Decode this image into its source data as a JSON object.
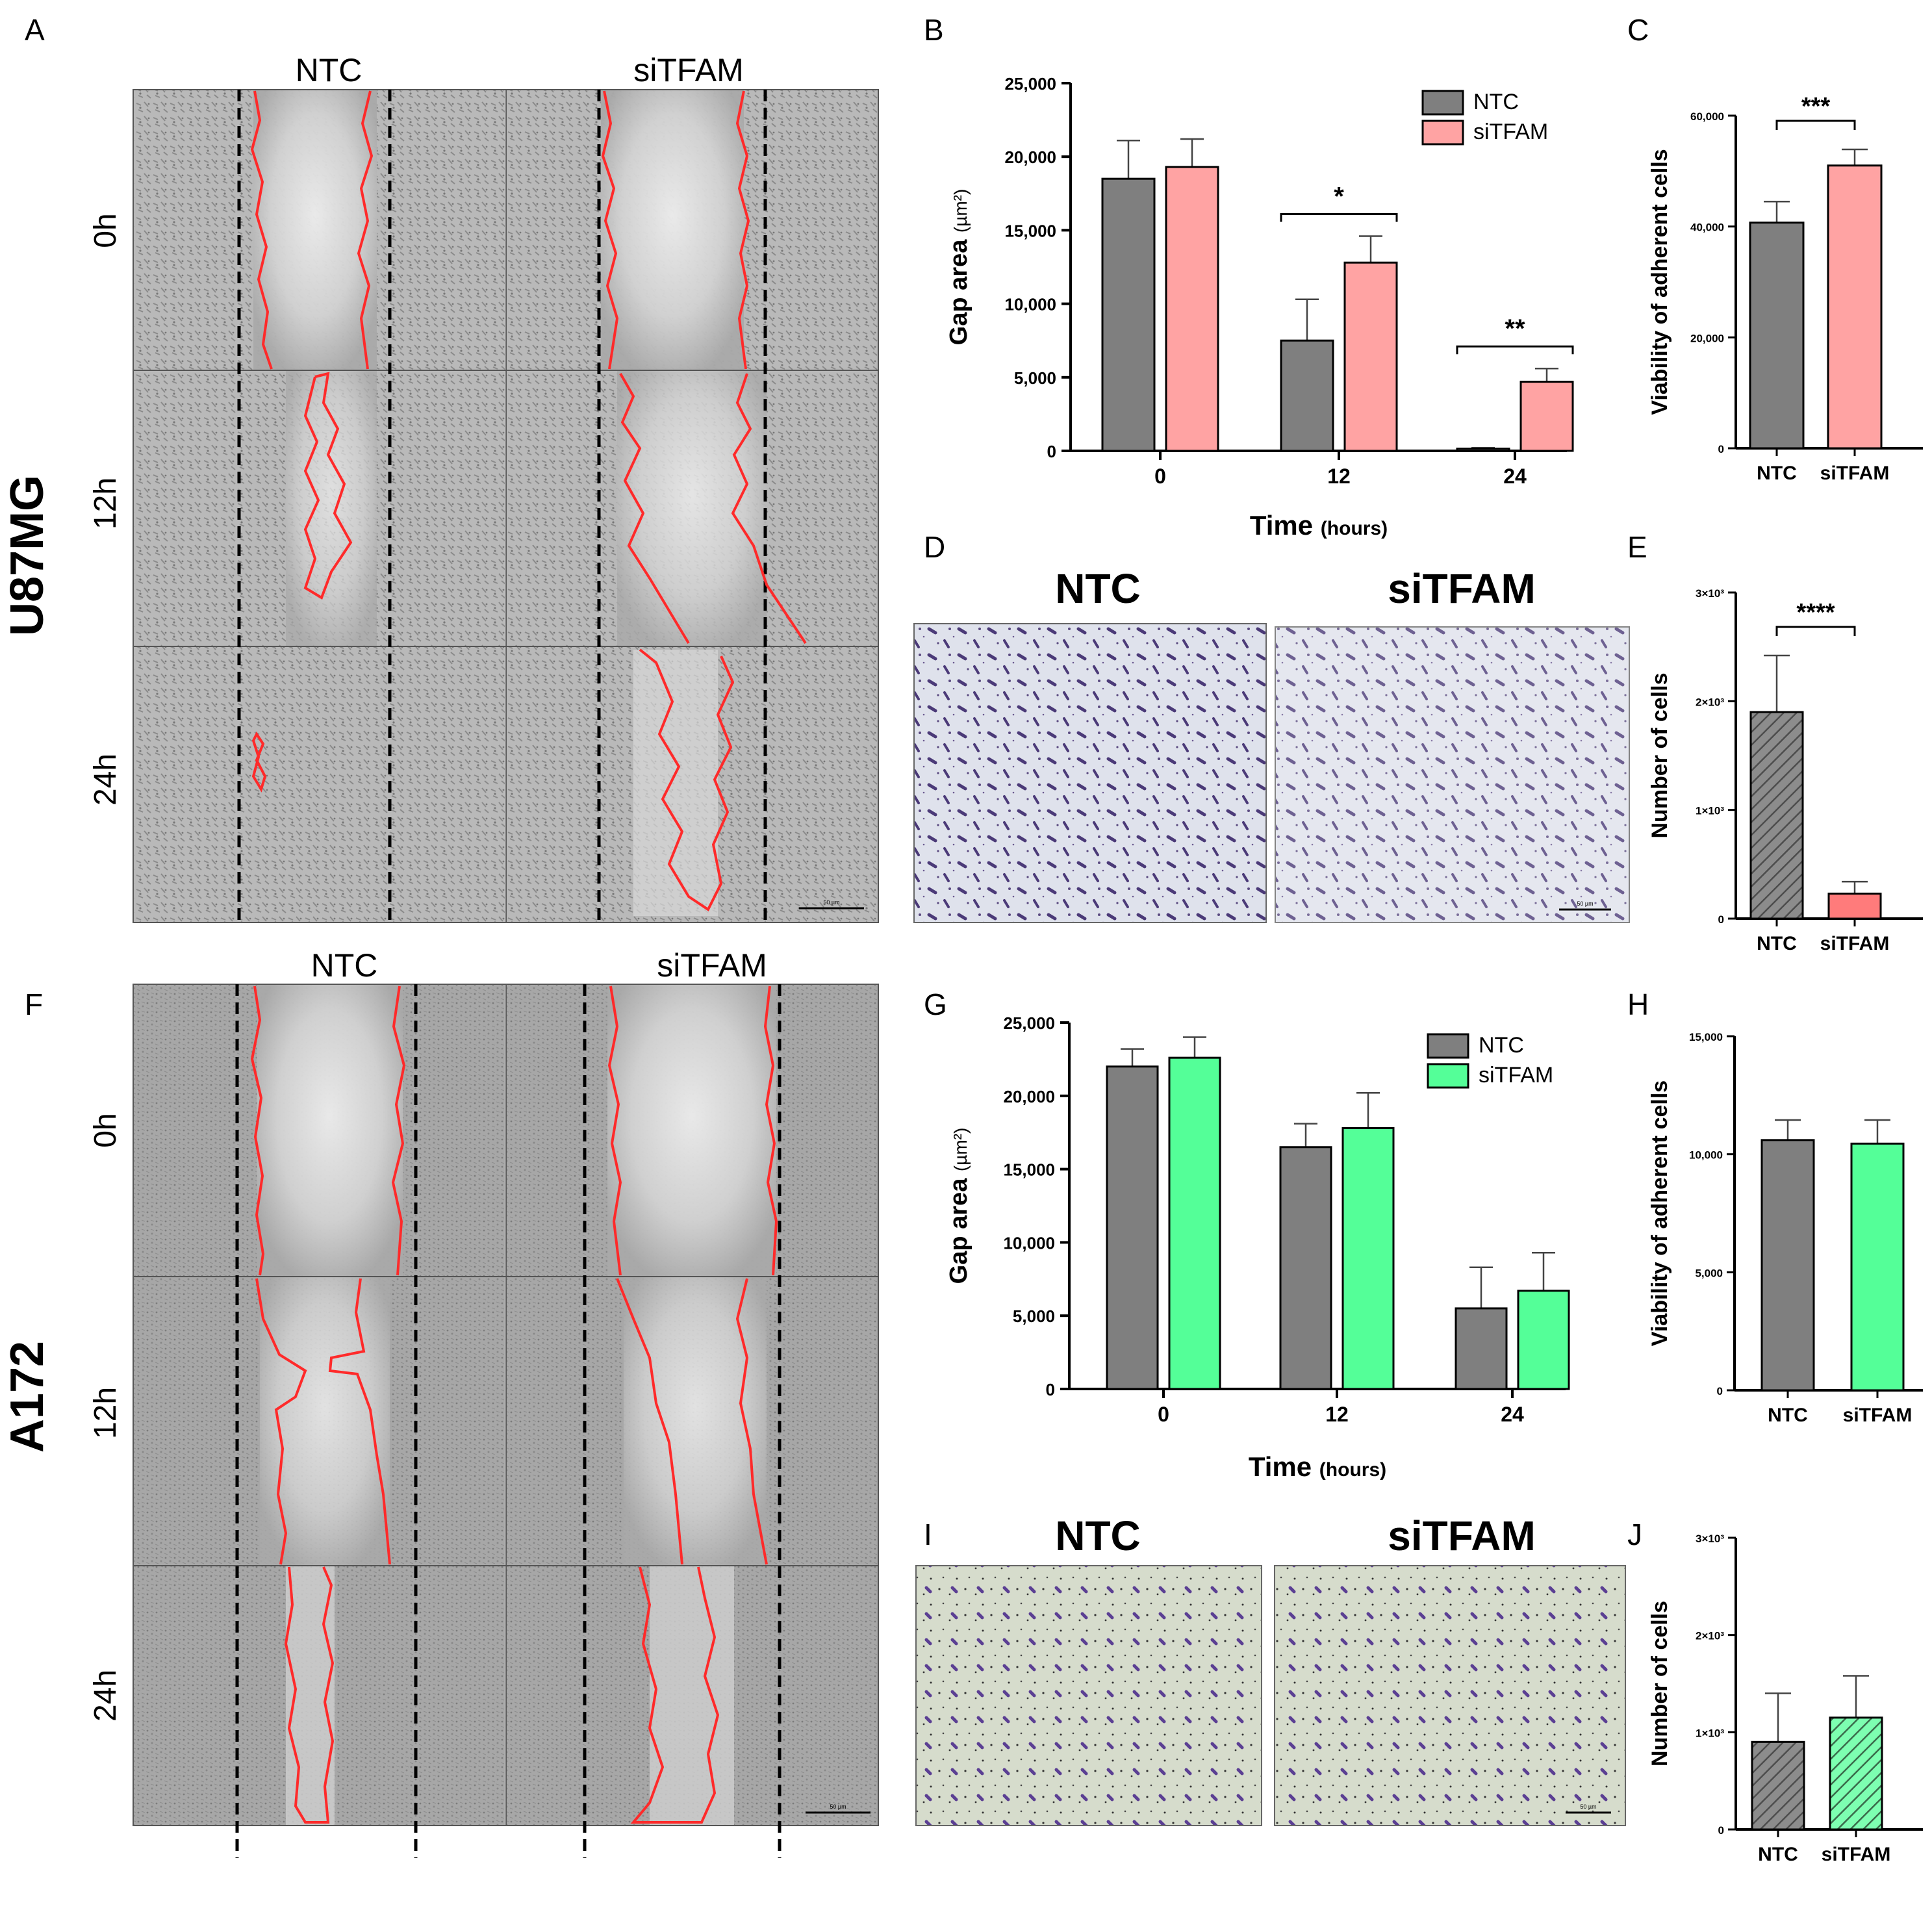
{
  "cell_lines": [
    "U87MG",
    "A172"
  ],
  "panel_labels": [
    "A",
    "B",
    "C",
    "D",
    "E",
    "F",
    "G",
    "H",
    "I",
    "J"
  ],
  "scratch": {
    "columns": [
      "NTC",
      "siTFAM"
    ],
    "rows": [
      "0h",
      "12h",
      "24h"
    ],
    "scale_bar": "50 µm"
  },
  "transwell": {
    "titles": [
      "NTC",
      "siTFAM"
    ],
    "scale_bar": "50 µm"
  },
  "colors": {
    "ntc": "#7f7f7f",
    "u87_sitfam": "#ffa3a3",
    "u87_sitfam_E": "#ff7b7b",
    "a172_sitfam": "#54ff98",
    "outline": "#000000",
    "wound_line": "#ff2a2a"
  },
  "chart_data": [
    {
      "id": "B",
      "type": "bar",
      "categories": [
        "0",
        "12",
        "24"
      ],
      "series": [
        {
          "name": "NTC",
          "values": [
            18500,
            7500,
            150
          ],
          "errors": [
            2600,
            2800,
            60
          ]
        },
        {
          "name": "siTFAM",
          "values": [
            19300,
            12800,
            4700
          ],
          "errors": [
            1900,
            1800,
            900
          ]
        }
      ],
      "ylim": [
        0,
        25000
      ],
      "yticks": [
        "0",
        "5,000",
        "10,000",
        "15,000",
        "20,000",
        "25,000"
      ],
      "ylabel_main": "Gap area",
      "ylabel_unit": "(µm²)",
      "xlabel_main": "Time",
      "xlabel_unit": "(hours)",
      "legend": [
        "NTC",
        "siTFAM"
      ],
      "annotations": [
        {
          "category": "12",
          "text": "*"
        },
        {
          "category": "24",
          "text": "**"
        }
      ]
    },
    {
      "id": "C",
      "type": "bar",
      "categories": [
        "NTC",
        "siTFAM"
      ],
      "values": [
        40700,
        51000
      ],
      "errors": [
        3800,
        2900
      ],
      "ylim": [
        0,
        60000
      ],
      "yticks": [
        "0",
        "20,000",
        "40,000",
        "60,000"
      ],
      "ylabel": "Viability of adherent cells",
      "annotation": "***"
    },
    {
      "id": "E",
      "type": "bar",
      "categories": [
        "NTC",
        "siTFAM"
      ],
      "values": [
        1900,
        230
      ],
      "errors": [
        520,
        110
      ],
      "ylim": [
        0,
        3000
      ],
      "yticks": [
        "0",
        "1×10³",
        "2×10³",
        "3×10³"
      ],
      "ylabel": "Number of cells",
      "annotation": "****"
    },
    {
      "id": "G",
      "type": "bar",
      "categories": [
        "0",
        "12",
        "24"
      ],
      "series": [
        {
          "name": "NTC",
          "values": [
            22000,
            16500,
            5500
          ],
          "errors": [
            1200,
            1600,
            2800
          ]
        },
        {
          "name": "siTFAM",
          "values": [
            22600,
            17800,
            6700
          ],
          "errors": [
            1400,
            2400,
            2600
          ]
        }
      ],
      "ylim": [
        0,
        25000
      ],
      "yticks": [
        "0",
        "5,000",
        "10,000",
        "15,000",
        "20,000",
        "25,000"
      ],
      "ylabel_main": "Gap area",
      "ylabel_unit": "(µm²)",
      "xlabel_main": "Time",
      "xlabel_unit": "(hours)",
      "legend": [
        "NTC",
        "siTFAM"
      ]
    },
    {
      "id": "H",
      "type": "bar",
      "categories": [
        "NTC",
        "siTFAM"
      ],
      "values": [
        10600,
        10450
      ],
      "errors": [
        850,
        1000
      ],
      "ylim": [
        0,
        15000
      ],
      "yticks": [
        "0",
        "5,000",
        "10,000",
        "15,000"
      ],
      "ylabel": "Viability of adherent cells"
    },
    {
      "id": "J",
      "type": "bar",
      "categories": [
        "NTC",
        "siTFAM"
      ],
      "values": [
        900,
        1150
      ],
      "errors": [
        500,
        430
      ],
      "ylim": [
        0,
        3000
      ],
      "yticks": [
        "0",
        "1×10³",
        "2×10³",
        "3×10³"
      ],
      "ylabel": "Number of cells"
    }
  ]
}
